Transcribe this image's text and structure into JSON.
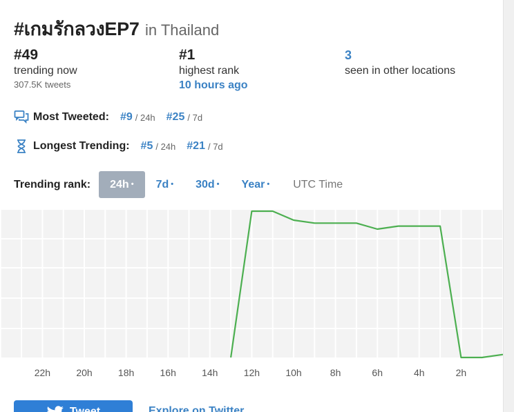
{
  "title": {
    "hashtag": "#เกมรักลวงEP7",
    "location": "in Thailand"
  },
  "stats": {
    "trending": {
      "value": "#49",
      "label": "trending now",
      "sub": "307.5K tweets"
    },
    "highest": {
      "value": "#1",
      "label": "highest rank",
      "when": "10 hours ago"
    },
    "locations": {
      "value": "3",
      "label": "seen in other locations"
    }
  },
  "most_tweeted": {
    "label": "Most Tweeted:",
    "items": [
      {
        "rank": "#9",
        "period": "/ 24h"
      },
      {
        "rank": "#25",
        "period": "/ 7d"
      }
    ]
  },
  "longest_trending": {
    "label": "Longest Trending:",
    "items": [
      {
        "rank": "#5",
        "period": "/ 24h"
      },
      {
        "rank": "#21",
        "period": "/ 7d"
      }
    ]
  },
  "trending_rank": {
    "label": "Trending rank:",
    "tabs": [
      {
        "label": "24h",
        "active": true
      },
      {
        "label": "7d",
        "active": false
      },
      {
        "label": "30d",
        "active": false
      },
      {
        "label": "Year",
        "active": false
      }
    ],
    "dot": "•",
    "timezone": "UTC Time"
  },
  "colors": {
    "accent": "#3b82c4",
    "line": "#4caf50",
    "grid_bg": "#f3f3f3"
  },
  "chart_data": {
    "type": "line",
    "x_ticks": [
      "22h",
      "20h",
      "18h",
      "16h",
      "14h",
      "12h",
      "10h",
      "8h",
      "6h",
      "4h",
      "2h"
    ],
    "x": [
      13,
      12,
      11,
      10,
      9,
      8,
      7,
      6,
      5,
      4,
      3,
      2,
      1,
      0
    ],
    "values": [
      null,
      1,
      1,
      4,
      5,
      5,
      5,
      7,
      6,
      6,
      6,
      null,
      50,
      49
    ],
    "ylim": [
      1,
      50
    ],
    "y_inverted": true,
    "grid": true,
    "legend": "none"
  },
  "actions": {
    "tweet": "Tweet",
    "explore": "Explore on Twitter"
  }
}
